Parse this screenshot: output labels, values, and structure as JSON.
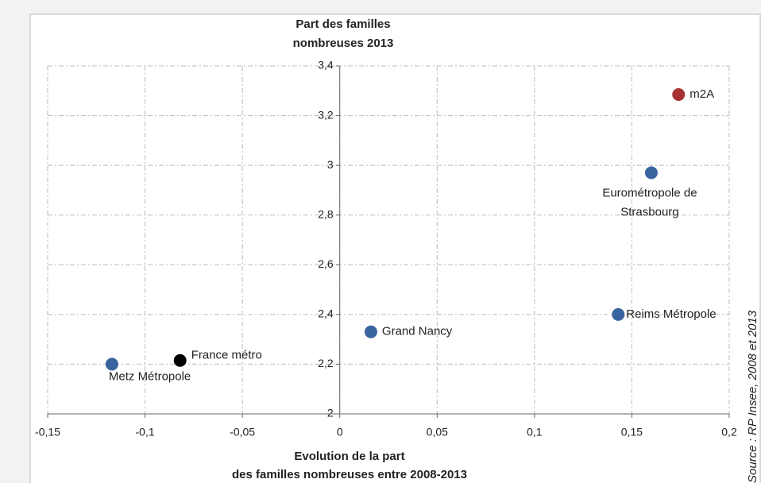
{
  "chart_data": {
    "type": "scatter",
    "y_title": [
      "Part des familles",
      "nombreuses 2013"
    ],
    "x_title": [
      "Evolution de la part",
      "des familles nombreuses entre 2008-2013"
    ],
    "source": "Source : RP Insee, 2008 et 2013",
    "xlim": [
      -0.15,
      0.2
    ],
    "xticks": [
      {
        "value": -0.15,
        "label": "-0,15"
      },
      {
        "value": -0.1,
        "label": "-0,1"
      },
      {
        "value": -0.05,
        "label": "-0,05"
      },
      0,
      {
        "value": 0.05,
        "label": "0,05"
      },
      {
        "value": 0.1,
        "label": "0,1"
      },
      {
        "value": 0.15,
        "label": "0,15"
      },
      {
        "value": 0.2,
        "label": "0,2"
      }
    ],
    "ylim": [
      2,
      3.4
    ],
    "yticks": [
      2,
      {
        "value": 2.2,
        "label": "2,2"
      },
      {
        "value": 2.4,
        "label": "2,4"
      },
      {
        "value": 2.6,
        "label": "2,6"
      },
      {
        "value": 2.8,
        "label": "2,8"
      },
      3,
      {
        "value": 3.2,
        "label": "3,2"
      },
      {
        "value": 3.4,
        "label": "3,4"
      }
    ],
    "grid": true,
    "points": [
      {
        "label_lines": [
          "m2A"
        ],
        "x": 0.174,
        "y": 3.285,
        "color": "#a83232"
      },
      {
        "label_lines": [
          "Eurométropole de",
          "Strasbourg"
        ],
        "x": 0.16,
        "y": 2.97,
        "color": "#3a64a0"
      },
      {
        "label_lines": [
          "Reims Métropole"
        ],
        "x": 0.143,
        "y": 2.4,
        "color": "#3a64a0"
      },
      {
        "label_lines": [
          "Grand Nancy"
        ],
        "x": 0.016,
        "y": 2.33,
        "color": "#3a64a0"
      },
      {
        "label_lines": [
          "France métro"
        ],
        "x": -0.082,
        "y": 2.215,
        "color": "#000000"
      },
      {
        "label_lines": [
          "Metz Métropole"
        ],
        "x": -0.117,
        "y": 2.2,
        "color": "#3a64a0"
      }
    ]
  }
}
